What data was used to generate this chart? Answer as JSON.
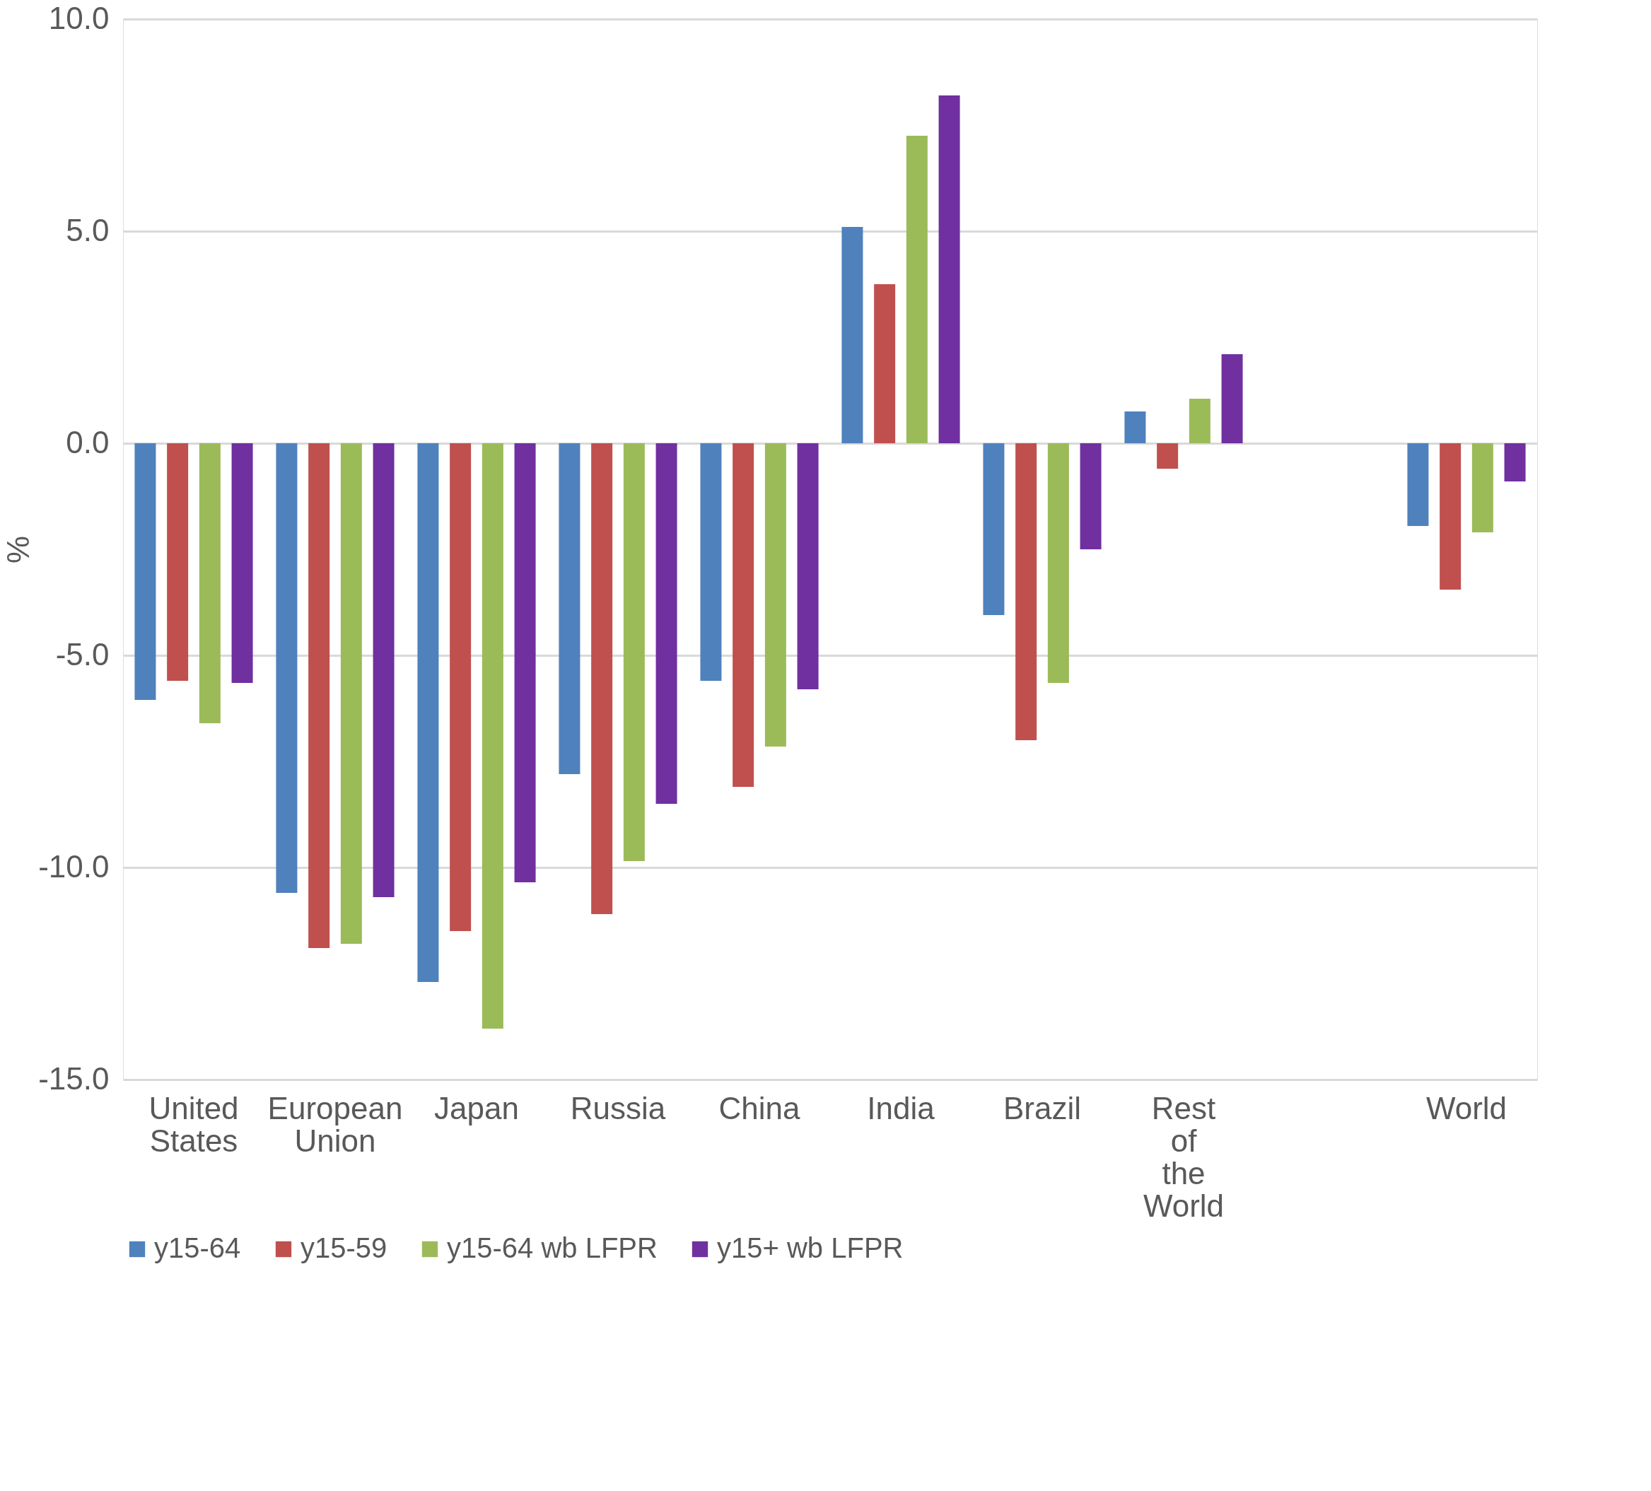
{
  "chart_data": {
    "type": "bar",
    "ylabel": "%",
    "categories": [
      "United States",
      "European Union",
      "Japan",
      "Russia",
      "China",
      "India",
      "Brazil",
      "Rest of the World",
      null,
      "World"
    ],
    "series": [
      {
        "name": "y15-64",
        "color": "#4f81bd",
        "values": [
          -6.05,
          -10.6,
          -12.7,
          -7.8,
          -5.6,
          5.1,
          -4.05,
          0.75,
          null,
          -1.95
        ]
      },
      {
        "name": "y15-59",
        "color": "#c0504d",
        "values": [
          -5.6,
          -11.9,
          -11.5,
          -11.1,
          -8.1,
          3.75,
          -7.0,
          -0.6,
          null,
          -3.45
        ]
      },
      {
        "name": "y15-64 wb LFPR",
        "color": "#9bbb59",
        "values": [
          -6.6,
          -11.8,
          -13.8,
          -9.85,
          -7.15,
          7.25,
          -5.65,
          1.05,
          null,
          -2.1
        ]
      },
      {
        "name": "y15+ wb LFPR",
        "color": "#7030a0",
        "values": [
          -5.65,
          -10.7,
          -10.35,
          -8.5,
          -5.8,
          8.2,
          -2.5,
          2.1,
          null,
          -0.9
        ]
      }
    ],
    "ylim": [
      -15,
      10
    ],
    "yticks": [
      {
        "value": -15,
        "label": "-15.0"
      },
      {
        "value": -10,
        "label": "-10.0"
      },
      {
        "value": -5,
        "label": "-5.0"
      },
      {
        "value": 0,
        "label": "0.0"
      },
      {
        "value": 5,
        "label": "5.0"
      },
      {
        "value": 10,
        "label": "10.0"
      }
    ],
    "grid": "y",
    "legend": "bottom"
  }
}
